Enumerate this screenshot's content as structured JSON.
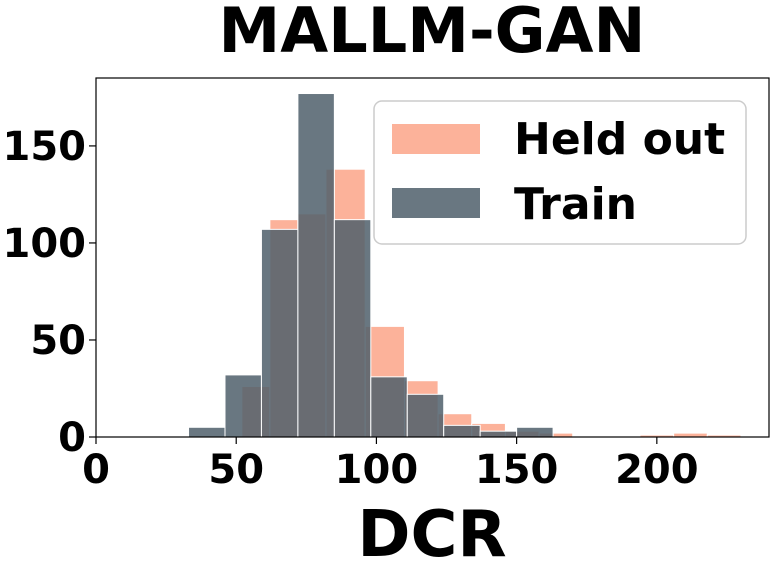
{
  "chart_data": {
    "type": "histogram",
    "title": "MALLM-GAN",
    "xlabel": "DCR",
    "ylabel": "",
    "xlim": [
      0,
      240
    ],
    "ylim": [
      0,
      185
    ],
    "xticks": [
      "0",
      "50",
      "100",
      "150",
      "200"
    ],
    "yticks": [
      "0",
      "50",
      "100",
      "150"
    ],
    "grid": false,
    "legend_position": "top-right",
    "series": [
      {
        "name": "Held out",
        "color": "#fca588",
        "opacity": 0.85,
        "bins": [
          {
            "x0": 52,
            "x1": 62,
            "count": 26
          },
          {
            "x0": 62,
            "x1": 72,
            "count": 112
          },
          {
            "x0": 72,
            "x1": 82,
            "count": 115
          },
          {
            "x0": 82,
            "x1": 96,
            "count": 138
          },
          {
            "x0": 96,
            "x1": 110,
            "count": 57
          },
          {
            "x0": 110,
            "x1": 122,
            "count": 29
          },
          {
            "x0": 122,
            "x1": 134,
            "count": 12
          },
          {
            "x0": 134,
            "x1": 146,
            "count": 7
          },
          {
            "x0": 146,
            "x1": 158,
            "count": 3
          },
          {
            "x0": 158,
            "x1": 170,
            "count": 2
          },
          {
            "x0": 194,
            "x1": 206,
            "count": 1
          },
          {
            "x0": 206,
            "x1": 218,
            "count": 2
          },
          {
            "x0": 218,
            "x1": 230,
            "count": 1
          }
        ]
      },
      {
        "name": "Train",
        "color": "#4f5f6b",
        "opacity": 0.85,
        "bins": [
          {
            "x0": 33,
            "x1": 46,
            "count": 5
          },
          {
            "x0": 46,
            "x1": 59,
            "count": 32
          },
          {
            "x0": 59,
            "x1": 72,
            "count": 107
          },
          {
            "x0": 72,
            "x1": 85,
            "count": 177
          },
          {
            "x0": 85,
            "x1": 98,
            "count": 112
          },
          {
            "x0": 98,
            "x1": 111,
            "count": 31
          },
          {
            "x0": 111,
            "x1": 124,
            "count": 22
          },
          {
            "x0": 124,
            "x1": 137,
            "count": 6
          },
          {
            "x0": 137,
            "x1": 150,
            "count": 3
          },
          {
            "x0": 150,
            "x1": 163,
            "count": 5
          }
        ]
      }
    ]
  }
}
